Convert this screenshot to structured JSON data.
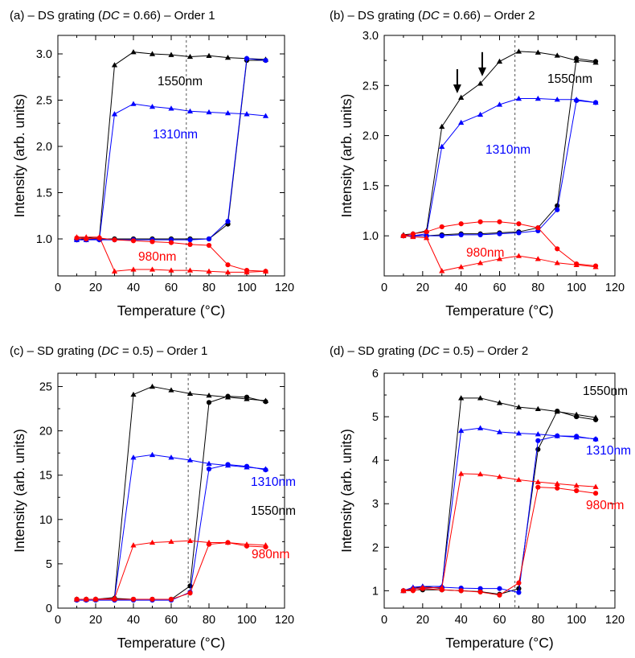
{
  "chart_data": [
    {
      "type": "line",
      "title": "(a) – DS grating (DC = 0.66) – Order 1",
      "title_parts": {
        "prefix": "(a) – DS grating (",
        "italic": "DC",
        "suffix": " = 0.66) – Order 1"
      },
      "xlabel": "Temperature (°C)",
      "ylabel": "Intensity (arb. units)",
      "xlim": [
        0,
        120
      ],
      "ylim": [
        0.6,
        3.2
      ],
      "xticks": [
        0,
        20,
        40,
        60,
        80,
        100,
        120
      ],
      "yticks": [
        1.0,
        1.5,
        2.0,
        2.5,
        3.0
      ],
      "ytick_labels": [
        "1.0",
        "1.5",
        "2.0",
        "2.5",
        "3.0"
      ],
      "dashed_vline_x": 68,
      "grid": false,
      "series": [
        {
          "name": "1550nm",
          "color": "#000000",
          "marker": "triangle",
          "x": [
            10,
            15,
            22,
            30,
            40,
            50,
            60,
            70,
            80,
            90,
            100,
            110
          ],
          "y": [
            1.01,
            1.01,
            1.02,
            2.88,
            3.02,
            3.0,
            2.99,
            2.97,
            2.98,
            2.96,
            2.95,
            2.94
          ]
        },
        {
          "color": "#000000",
          "marker": "circle",
          "x": [
            10,
            15,
            22,
            30,
            40,
            50,
            60,
            70,
            80,
            90,
            100,
            110
          ],
          "y": [
            0.99,
            1.0,
            1.0,
            1.0,
            1.0,
            1.0,
            1.0,
            1.0,
            1.0,
            1.16,
            2.93,
            2.93
          ]
        },
        {
          "name": "1310nm",
          "color": "#0000ff",
          "marker": "triangle",
          "x": [
            10,
            15,
            22,
            30,
            40,
            50,
            60,
            70,
            80,
            90,
            100,
            110
          ],
          "y": [
            0.99,
            0.99,
            1.0,
            2.35,
            2.46,
            2.43,
            2.41,
            2.38,
            2.37,
            2.36,
            2.35,
            2.33
          ]
        },
        {
          "color": "#0000ff",
          "marker": "circle",
          "x": [
            10,
            15,
            22,
            30,
            40,
            50,
            60,
            70,
            80,
            90,
            100,
            110
          ],
          "y": [
            0.99,
            0.99,
            0.99,
            0.99,
            0.99,
            0.99,
            0.99,
            0.99,
            1.0,
            1.19,
            2.95,
            2.93
          ]
        },
        {
          "name": "980nm",
          "color": "#ff0000",
          "marker": "triangle",
          "x": [
            10,
            15,
            22,
            30,
            40,
            50,
            60,
            70,
            80,
            90,
            100,
            110
          ],
          "y": [
            1.02,
            1.02,
            1.02,
            0.65,
            0.67,
            0.67,
            0.66,
            0.66,
            0.65,
            0.64,
            0.64,
            0.65
          ]
        },
        {
          "color": "#ff0000",
          "marker": "circle",
          "x": [
            10,
            15,
            22,
            30,
            40,
            50,
            60,
            70,
            80,
            90,
            100,
            110
          ],
          "y": [
            1.01,
            1.0,
            1.01,
            0.99,
            0.98,
            0.97,
            0.96,
            0.94,
            0.93,
            0.72,
            0.66,
            0.65
          ]
        }
      ],
      "labels": [
        {
          "text": "1550nm",
          "color": "#000000"
        },
        {
          "text": "1310nm",
          "color": "#0000ff"
        },
        {
          "text": "980nm",
          "color": "#ff0000"
        }
      ]
    },
    {
      "type": "line",
      "title": "(b) – DS grating (DC = 0.66) – Order 2",
      "title_parts": {
        "prefix": "(b) – DS grating (",
        "italic": "DC",
        "suffix": " = 0.66) – Order 2"
      },
      "xlabel": "Temperature (°C)",
      "ylabel": "Intensity (arb. units)",
      "xlim": [
        0,
        120
      ],
      "ylim": [
        0.6,
        3.0
      ],
      "xticks": [
        0,
        20,
        40,
        60,
        80,
        100,
        120
      ],
      "yticks": [
        1.0,
        1.5,
        2.0,
        2.5,
        3.0
      ],
      "ytick_labels": [
        "1.0",
        "1.5",
        "2.0",
        "2.5",
        "3.0"
      ],
      "dashed_vline_x": 68,
      "grid": false,
      "arrows": [
        {
          "x": 38,
          "y_tip": 2.39
        },
        {
          "x": 51,
          "y_tip": 2.56
        }
      ],
      "series": [
        {
          "name": "1550nm",
          "color": "#000000",
          "marker": "triangle",
          "x": [
            10,
            15,
            22,
            30,
            40,
            50,
            60,
            70,
            80,
            90,
            100,
            110
          ],
          "y": [
            1.01,
            1.02,
            1.05,
            2.09,
            2.38,
            2.52,
            2.74,
            2.84,
            2.83,
            2.8,
            2.75,
            2.73
          ]
        },
        {
          "color": "#000000",
          "marker": "circle",
          "x": [
            10,
            15,
            22,
            30,
            40,
            50,
            60,
            70,
            80,
            90,
            100,
            110
          ],
          "y": [
            1.0,
            1.0,
            1.0,
            1.01,
            1.02,
            1.02,
            1.03,
            1.04,
            1.08,
            1.3,
            2.77,
            2.74
          ]
        },
        {
          "name": "1310nm",
          "color": "#0000ff",
          "marker": "triangle",
          "x": [
            10,
            15,
            22,
            30,
            40,
            50,
            60,
            70,
            80,
            90,
            100,
            110
          ],
          "y": [
            1.0,
            1.0,
            1.02,
            1.89,
            2.13,
            2.21,
            2.31,
            2.37,
            2.37,
            2.36,
            2.36,
            2.33
          ]
        },
        {
          "color": "#0000ff",
          "marker": "circle",
          "x": [
            10,
            15,
            22,
            30,
            40,
            50,
            60,
            70,
            80,
            90,
            100,
            110
          ],
          "y": [
            1.0,
            1.0,
            1.0,
            1.0,
            1.01,
            1.01,
            1.02,
            1.03,
            1.05,
            1.26,
            2.35,
            2.33
          ]
        },
        {
          "name": "980nm",
          "color": "#ff0000",
          "marker": "triangle",
          "x": [
            10,
            15,
            22,
            30,
            40,
            50,
            60,
            70,
            80,
            90,
            100,
            110
          ],
          "y": [
            1.0,
            0.99,
            0.98,
            0.65,
            0.69,
            0.73,
            0.77,
            0.8,
            0.77,
            0.73,
            0.71,
            0.69
          ]
        },
        {
          "color": "#ff0000",
          "marker": "circle",
          "x": [
            10,
            15,
            22,
            30,
            40,
            50,
            60,
            70,
            80,
            90,
            100,
            110
          ],
          "y": [
            1.0,
            1.02,
            1.04,
            1.09,
            1.12,
            1.14,
            1.14,
            1.12,
            1.08,
            0.87,
            0.72,
            0.7
          ]
        }
      ],
      "labels": [
        {
          "text": "1550nm",
          "color": "#000000"
        },
        {
          "text": "1310nm",
          "color": "#0000ff"
        },
        {
          "text": "980nm",
          "color": "#ff0000"
        }
      ]
    },
    {
      "type": "line",
      "title": "(c) – SD grating (DC = 0.5) – Order 1",
      "title_parts": {
        "prefix": "(c) – SD grating (",
        "italic": "DC",
        "suffix": " = 0.5) – Order 1"
      },
      "xlabel": "Temperature (°C)",
      "ylabel": "Intensity (arb. units)",
      "xlim": [
        0,
        120
      ],
      "ylim": [
        0,
        26.5
      ],
      "xticks": [
        0,
        20,
        40,
        60,
        80,
        100,
        120
      ],
      "yticks": [
        0,
        5,
        10,
        15,
        20,
        25
      ],
      "ytick_labels": [
        "0",
        "5",
        "10",
        "15",
        "20",
        "25"
      ],
      "dashed_vline_x": 69,
      "grid": false,
      "series": [
        {
          "name": "1550nm",
          "color": "#000000",
          "marker": "triangle",
          "x": [
            10,
            15,
            20,
            30,
            40,
            50,
            60,
            70,
            80,
            90,
            100,
            110
          ],
          "y": [
            1.0,
            1.0,
            1.0,
            1.2,
            24.1,
            25.0,
            24.6,
            24.2,
            24.0,
            23.8,
            23.6,
            23.4
          ]
        },
        {
          "color": "#000000",
          "marker": "circle",
          "x": [
            10,
            15,
            20,
            30,
            40,
            50,
            60,
            70,
            80,
            90,
            100,
            110
          ],
          "y": [
            1.0,
            1.0,
            1.0,
            1.1,
            1.0,
            1.0,
            1.0,
            2.5,
            23.2,
            23.9,
            23.8,
            23.3
          ]
        },
        {
          "name": "1310nm",
          "color": "#0000ff",
          "marker": "triangle",
          "x": [
            10,
            15,
            20,
            30,
            40,
            50,
            60,
            70,
            80,
            90,
            100,
            110
          ],
          "y": [
            1.0,
            1.0,
            1.0,
            1.1,
            17.0,
            17.3,
            17.0,
            16.7,
            16.3,
            16.1,
            15.9,
            15.7
          ]
        },
        {
          "color": "#0000ff",
          "marker": "circle",
          "x": [
            10,
            15,
            20,
            30,
            40,
            50,
            60,
            70,
            80,
            90,
            100,
            110
          ],
          "y": [
            0.9,
            0.9,
            0.9,
            0.9,
            0.9,
            0.9,
            0.9,
            1.8,
            15.7,
            16.2,
            16.0,
            15.6
          ]
        },
        {
          "name": "980nm",
          "color": "#ff0000",
          "marker": "triangle",
          "x": [
            10,
            15,
            20,
            30,
            40,
            50,
            60,
            70,
            80,
            90,
            100,
            110
          ],
          "y": [
            1.0,
            1.0,
            1.0,
            1.1,
            7.1,
            7.4,
            7.5,
            7.6,
            7.4,
            7.4,
            7.2,
            7.1
          ]
        },
        {
          "color": "#ff0000",
          "marker": "circle",
          "x": [
            10,
            15,
            20,
            30,
            40,
            50,
            60,
            70,
            80,
            90,
            100,
            110
          ],
          "y": [
            1.0,
            1.0,
            1.0,
            1.0,
            1.0,
            1.0,
            1.0,
            1.7,
            7.2,
            7.4,
            7.0,
            6.9
          ]
        }
      ],
      "labels": [
        {
          "text": "1550nm",
          "color": "#000000"
        },
        {
          "text": "1310nm",
          "color": "#0000ff"
        },
        {
          "text": "980nm",
          "color": "#ff0000"
        }
      ]
    },
    {
      "type": "line",
      "title": "(d) – SD grating (DC = 0.5) – Order 2",
      "title_parts": {
        "prefix": "(d) – SD grating (",
        "italic": "DC",
        "suffix": " = 0.5) – Order 2"
      },
      "xlabel": "Temperature (°C)",
      "ylabel": "Intensity (arb. units)",
      "xlim": [
        0,
        120
      ],
      "ylim": [
        0.6,
        6.0
      ],
      "xticks": [
        0,
        20,
        40,
        60,
        80,
        100,
        120
      ],
      "yticks": [
        1,
        2,
        3,
        4,
        5,
        6
      ],
      "ytick_labels": [
        "1",
        "2",
        "3",
        "4",
        "5",
        "6"
      ],
      "dashed_vline_x": 68,
      "grid": false,
      "series": [
        {
          "name": "1550nm",
          "color": "#000000",
          "marker": "triangle",
          "x": [
            10,
            15,
            20,
            30,
            40,
            50,
            60,
            70,
            80,
            90,
            100,
            110
          ],
          "y": [
            1.0,
            1.05,
            1.1,
            1.05,
            5.43,
            5.43,
            5.32,
            5.22,
            5.18,
            5.12,
            5.05,
            4.98
          ]
        },
        {
          "color": "#000000",
          "marker": "circle",
          "x": [
            10,
            15,
            20,
            30,
            40,
            50,
            60,
            70,
            80,
            90,
            100,
            110
          ],
          "y": [
            1.0,
            1.02,
            1.02,
            1.02,
            1.0,
            0.98,
            0.92,
            1.05,
            4.25,
            5.13,
            5.0,
            4.93
          ]
        },
        {
          "name": "1310nm",
          "color": "#0000ff",
          "marker": "triangle",
          "x": [
            10,
            15,
            20,
            30,
            40,
            50,
            60,
            70,
            80,
            90,
            100,
            110
          ],
          "y": [
            1.0,
            1.08,
            1.1,
            1.1,
            4.68,
            4.74,
            4.65,
            4.62,
            4.6,
            4.56,
            4.53,
            4.49
          ]
        },
        {
          "color": "#0000ff",
          "marker": "circle",
          "x": [
            10,
            15,
            20,
            30,
            40,
            50,
            60,
            70,
            80,
            90,
            100,
            110
          ],
          "y": [
            1.0,
            1.05,
            1.06,
            1.08,
            1.06,
            1.05,
            1.05,
            0.96,
            4.45,
            4.56,
            4.55,
            4.48
          ]
        },
        {
          "name": "980nm",
          "color": "#ff0000",
          "marker": "triangle",
          "x": [
            10,
            15,
            20,
            30,
            40,
            50,
            60,
            70,
            80,
            90,
            100,
            110
          ],
          "y": [
            1.0,
            1.05,
            1.07,
            1.07,
            3.69,
            3.68,
            3.62,
            3.55,
            3.5,
            3.46,
            3.42,
            3.39
          ]
        },
        {
          "color": "#ff0000",
          "marker": "circle",
          "x": [
            10,
            15,
            20,
            30,
            40,
            50,
            60,
            70,
            80,
            90,
            100,
            110
          ],
          "y": [
            1.0,
            1.0,
            1.05,
            1.02,
            1.0,
            0.97,
            0.9,
            1.18,
            3.38,
            3.36,
            3.3,
            3.24
          ]
        }
      ],
      "labels": [
        {
          "text": "1550nm",
          "color": "#000000"
        },
        {
          "text": "1310nm",
          "color": "#0000ff"
        },
        {
          "text": "980nm",
          "color": "#ff0000"
        }
      ]
    }
  ]
}
